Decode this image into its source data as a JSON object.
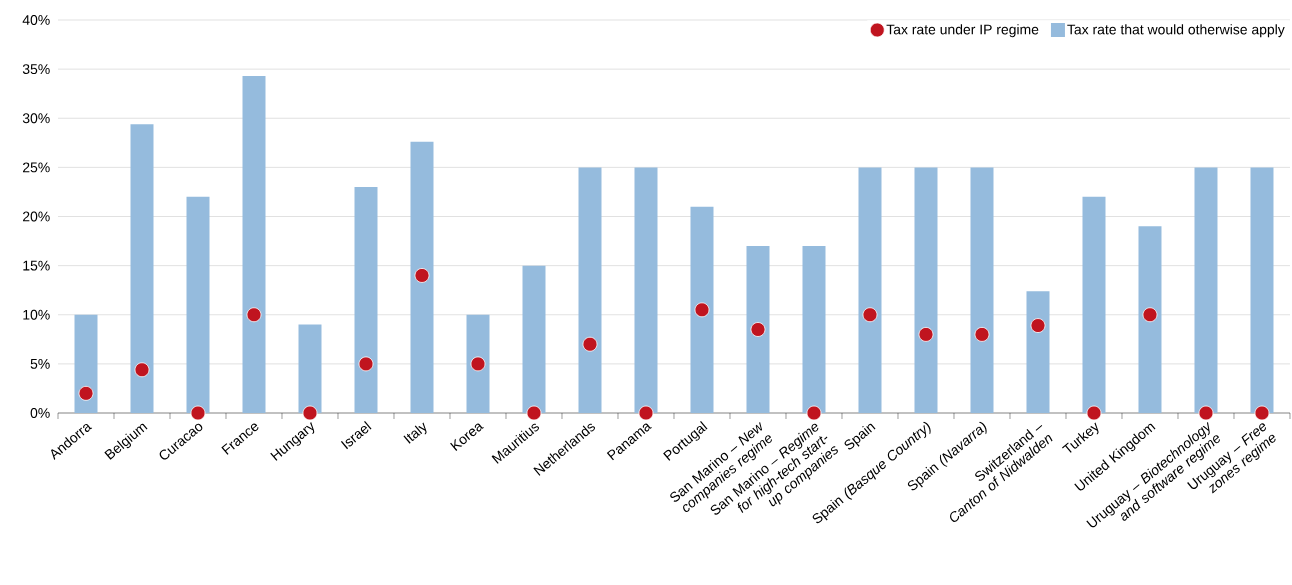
{
  "chart_data": {
    "type": "bar",
    "categories": [
      "Andorra",
      "Belgium",
      "Curacao",
      "France",
      "Hungary",
      "Israel",
      "Italy",
      "Korea",
      "Mauritius",
      "Netherlands",
      "Panama",
      "Portugal",
      "San Marino – *New companies regime*",
      "San Marino – *Regime for high-tech start-up companies*",
      "Spain",
      "Spain *(Basque Country)*",
      "Spain *(Navarra)*",
      "Switzerland – *Canton of Nidwalden*",
      "Turkey",
      "United Kingdom",
      "Uruguay – *Biotechnology and software regime*",
      "Uruguay – *Free zones regime*"
    ],
    "series": [
      {
        "name": "Tax rate that would otherwise apply",
        "color": "#95bbdd",
        "values": [
          10,
          29.4,
          22,
          34.3,
          9,
          23,
          27.6,
          10,
          15,
          25,
          25,
          21,
          17,
          17,
          25,
          25,
          25,
          12.4,
          22,
          19,
          25,
          25
        ]
      },
      {
        "name": "Tax rate under IP regime",
        "type": "scatter",
        "color": "#c0141f",
        "marker": "circle",
        "values": [
          2,
          4.4,
          0,
          10,
          0,
          5,
          14,
          5,
          0,
          7,
          0,
          10.5,
          8.5,
          0,
          10,
          8,
          8,
          8.9,
          0,
          10,
          0,
          0
        ]
      }
    ],
    "ylim": [
      0,
      40
    ],
    "yticks": [
      {
        "value": 0,
        "label": "0%"
      },
      {
        "value": 5,
        "label": "5%"
      },
      {
        "value": 10,
        "label": "10%"
      },
      {
        "value": 15,
        "label": "15%"
      },
      {
        "value": 20,
        "label": "20%"
      },
      {
        "value": 25,
        "label": "25%"
      },
      {
        "value": 30,
        "label": "30%"
      },
      {
        "value": 35,
        "label": "35%"
      },
      {
        "value": 40,
        "label": "40%"
      }
    ],
    "grid": "y",
    "legend": "top right"
  }
}
